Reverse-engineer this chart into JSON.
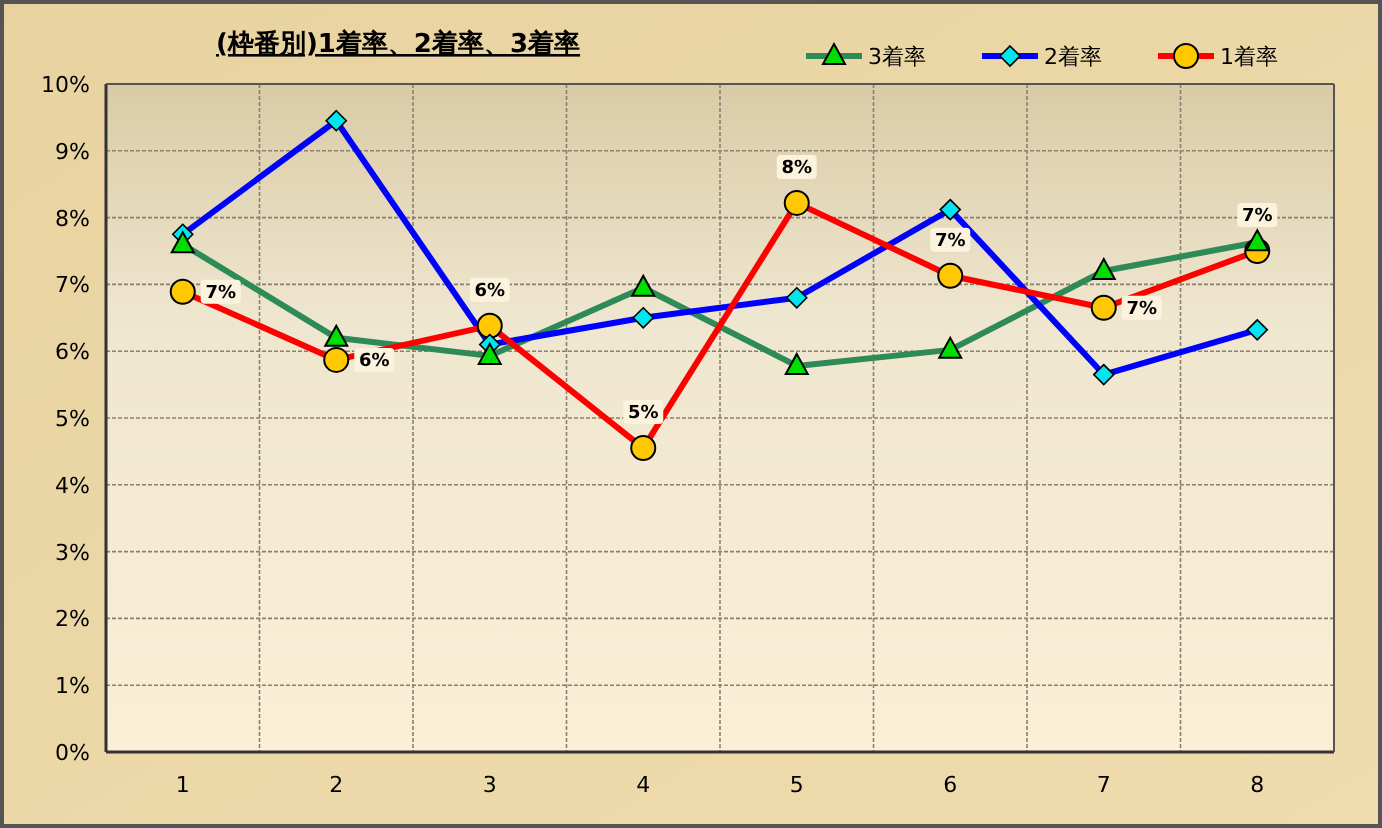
{
  "chart_data": {
    "type": "line",
    "title": "(枠番別)1着率、2着率、3着率",
    "categories": [
      "1",
      "2",
      "3",
      "4",
      "5",
      "6",
      "7",
      "8"
    ],
    "series": [
      {
        "name": "3着率",
        "color": "#2e8b57",
        "marker": "triangle",
        "values": [
          7.6,
          6.2,
          5.93,
          6.95,
          5.78,
          6.02,
          7.2,
          7.63
        ]
      },
      {
        "name": "2着率",
        "color": "#0000ff",
        "marker": "diamond",
        "values": [
          7.75,
          9.45,
          6.1,
          6.5,
          6.8,
          8.12,
          5.65,
          6.32
        ]
      },
      {
        "name": "1着率",
        "color": "#ff0000",
        "marker": "circle",
        "values": [
          6.89,
          5.87,
          6.38,
          4.55,
          8.22,
          7.13,
          6.65,
          7.5
        ],
        "value_labels": [
          "7%",
          "6%",
          "6%",
          "5%",
          "8%",
          "7%",
          "7%",
          "7%"
        ]
      }
    ],
    "ylim": [
      0,
      10
    ],
    "yticks": [
      {
        "value": 0,
        "label": "0%"
      },
      {
        "value": 1,
        "label": "1%"
      },
      {
        "value": 2,
        "label": "2%"
      },
      {
        "value": 3,
        "label": "3%"
      },
      {
        "value": 4,
        "label": "4%"
      },
      {
        "value": 5,
        "label": "5%"
      },
      {
        "value": 6,
        "label": "6%"
      },
      {
        "value": 7,
        "label": "7%"
      },
      {
        "value": 8,
        "label": "8%"
      },
      {
        "value": 9,
        "label": "9%"
      },
      {
        "value": 10,
        "label": "10%"
      }
    ],
    "grid": true,
    "legend": "top right"
  }
}
